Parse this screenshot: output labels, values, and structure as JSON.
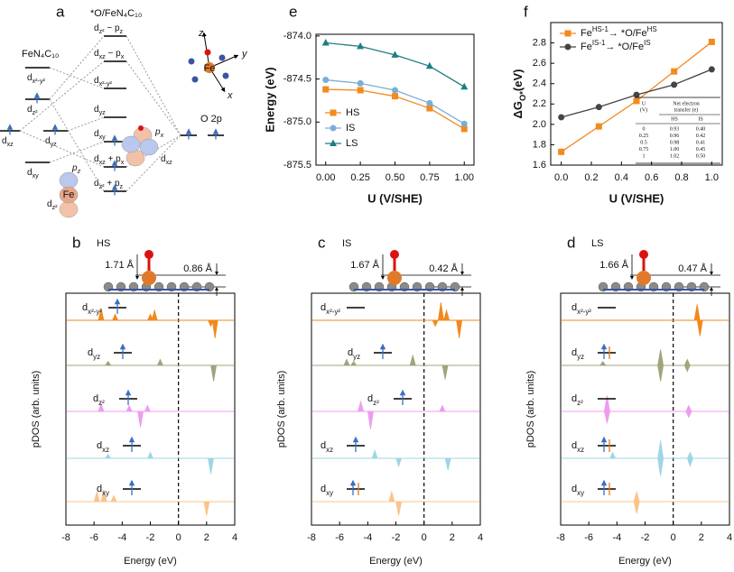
{
  "diagram": {
    "letter": "a",
    "title": "*O/FeN₄C₁₀",
    "left_title": "FeN₄C₁₀",
    "left_levels": [
      [
        "d",
        "x²-y²"
      ],
      [
        "d",
        "z²"
      ],
      [
        "d",
        "yz"
      ],
      [
        "d",
        "xz"
      ],
      [
        "d",
        "xy"
      ]
    ],
    "middle_levels": [
      [
        "d",
        "z²",
        " − p",
        "z"
      ],
      [
        "d",
        "xz",
        " − p",
        "x"
      ],
      [
        "d",
        "x²-y²"
      ],
      [
        "d",
        "yz"
      ],
      [
        "d",
        "xy"
      ],
      [
        "d",
        "xz",
        " + p",
        "x"
      ],
      [
        "d",
        "z²",
        " + p",
        "z"
      ]
    ],
    "o_label": "O 2p",
    "orbital_labels": [
      [
        "p",
        "x"
      ],
      [
        "d",
        "xz"
      ],
      [
        "p",
        "z"
      ],
      [
        "d",
        "z²"
      ]
    ],
    "fe_labels": [
      "Fe",
      "Fe"
    ],
    "axis_labels": [
      "z",
      "y",
      "x"
    ]
  },
  "chart_data": [
    {
      "type": "line",
      "letter": "e",
      "ylabel": "Energy (eV)",
      "xlabel": "U (V/SHE)",
      "x": [
        0,
        0.25,
        0.5,
        0.75,
        1
      ],
      "xlim": [
        -0.07,
        1.07
      ],
      "ylim": [
        -875.5,
        -873.98
      ],
      "xticks": [
        {
          "value": 0,
          "label": "0.00"
        },
        {
          "value": 0.25,
          "label": "0.25"
        },
        {
          "value": 0.5,
          "label": "0.50"
        },
        {
          "value": 0.75,
          "label": "0.75"
        },
        {
          "value": 1,
          "label": "1.00"
        }
      ],
      "yticks": [
        {
          "value": -875.5,
          "label": "-875.5"
        },
        {
          "value": -875,
          "label": "-875.0"
        },
        {
          "value": -874.5,
          "label": "-874.5"
        },
        {
          "value": -874,
          "label": "-874.0"
        }
      ],
      "legend": "lower left",
      "series": [
        {
          "name": "HS",
          "color": "#f28a1e",
          "marker": "square",
          "values": [
            -874.62,
            -874.63,
            -874.7,
            -874.84,
            -875.08
          ]
        },
        {
          "name": "IS",
          "color": "#7aaed6",
          "marker": "circle",
          "values": [
            -874.51,
            -874.55,
            -874.63,
            -874.78,
            -875.02
          ]
        },
        {
          "name": "LS",
          "color": "#1f7d82",
          "marker": "triangle",
          "values": [
            -874.08,
            -874.12,
            -874.22,
            -874.35,
            -874.59
          ]
        }
      ]
    },
    {
      "type": "line",
      "letter": "f",
      "ylabel": [
        "ΔG",
        "O*",
        "(eV)"
      ],
      "xlabel": "U (V/SHE)",
      "x": [
        0,
        0.25,
        0.5,
        0.75,
        1
      ],
      "xlim": [
        -0.07,
        1.07
      ],
      "ylim": [
        1.6,
        3.0
      ],
      "xticks": [
        {
          "value": 0,
          "label": "0.0"
        },
        0.2,
        0.4,
        0.6,
        0.8,
        {
          "value": 1,
          "label": "1.0"
        }
      ],
      "yticks": [
        1.6,
        1.8,
        {
          "value": 2,
          "label": "2.0"
        },
        2.2,
        2.4,
        2.6,
        2.8
      ],
      "legend": "upper left",
      "series": [
        {
          "name": [
            "Fe",
            "HS-1",
            "→  *O/Fe",
            "HS"
          ],
          "color": "#f28a1e",
          "marker": "square",
          "values": [
            1.73,
            1.98,
            2.23,
            2.52,
            2.81
          ]
        },
        {
          "name": [
            "Fe",
            "IS-1",
            "→  *O/Fe",
            "IS"
          ],
          "color": "#444444",
          "marker": "circle",
          "values": [
            2.07,
            2.17,
            2.29,
            2.39,
            2.54
          ]
        }
      ],
      "inset_table": {
        "headers": [
          "U",
          "Net electron",
          "(V)",
          "transfer (e)"
        ],
        "subheaders": [
          "HS",
          "IS"
        ],
        "rows": [
          [
            "0",
            "0.93",
            "0.40"
          ],
          [
            "0.25",
            "0.96",
            "0.42"
          ],
          [
            "0.5",
            "0.98",
            "0.41"
          ],
          [
            "0.75",
            "1.00",
            "0.45"
          ],
          [
            "1",
            "1.02",
            "0.50"
          ]
        ]
      }
    },
    {
      "type": "pdos",
      "letter": "b",
      "state": "HS",
      "bond": "1.71 Å",
      "height": "0.86 Å",
      "xlabel": "Energy (eV)",
      "ylabel": "pDOS (arb. units)",
      "xlim": [
        -8,
        4
      ],
      "xticks": [
        -8,
        -6,
        -4,
        -2,
        0,
        2,
        4
      ],
      "rows": [
        {
          "label": [
            "d",
            "x²-y²"
          ],
          "color": "#f08a1c",
          "peaks_x": [
            -5.5,
            -4.5,
            -2,
            -1.7,
            2.3,
            2.6
          ],
          "peaks_y": [
            0.6,
            0.3,
            0.3,
            0.5,
            -0.3,
            -0.9
          ]
        },
        {
          "label": [
            "d",
            "yz"
          ],
          "color": "#a3a37c",
          "peaks_x": [
            -5,
            -1.3,
            2.5
          ],
          "peaks_y": [
            0.2,
            0.3,
            -0.8
          ]
        },
        {
          "label": [
            "d",
            "z²"
          ],
          "color": "#ee9cee",
          "peaks_x": [
            -5.5,
            -3.5,
            -2.7,
            -2.2
          ],
          "peaks_y": [
            0.4,
            0.3,
            -0.8,
            0.3
          ]
        },
        {
          "label": [
            "d",
            "xz"
          ],
          "color": "#9fd6e6",
          "peaks_x": [
            -5,
            -2,
            2.3
          ],
          "peaks_y": [
            0.2,
            0.3,
            -0.8
          ]
        },
        {
          "label": [
            "d",
            "xy"
          ],
          "color": "#f9c48c",
          "peaks_x": [
            -5.8,
            -5.3,
            -4.6,
            2
          ],
          "peaks_y": [
            0.5,
            0.6,
            0.3,
            -0.7
          ]
        }
      ]
    },
    {
      "type": "pdos",
      "letter": "c",
      "state": "IS",
      "bond": "1.67 Å",
      "height": "0.42 Å",
      "xlabel": "Energy (eV)",
      "ylabel": "pDOS (arb. units)",
      "xlim": [
        -8,
        4
      ],
      "xticks": [
        -8,
        -6,
        -4,
        -2,
        0,
        2,
        4
      ],
      "rows": [
        {
          "label": [
            "d",
            "x²-y²"
          ],
          "color": "#f08a1c",
          "peaks_x": [
            0.8,
            1.2,
            1.6,
            2.5
          ],
          "peaks_y": [
            -0.3,
            0.9,
            0.5,
            -0.9
          ]
        },
        {
          "label": [
            "d",
            "yz"
          ],
          "color": "#a3a37c",
          "peaks_x": [
            -5.5,
            -5,
            -0.8,
            1.5
          ],
          "peaks_y": [
            0.3,
            0.2,
            0.5,
            -0.7
          ]
        },
        {
          "label": [
            "d",
            "z²"
          ],
          "color": "#ee9cee",
          "peaks_x": [
            -4.5,
            -3.8,
            1.3
          ],
          "peaks_y": [
            0.5,
            -0.9,
            0.3
          ]
        },
        {
          "label": [
            "d",
            "xz"
          ],
          "color": "#9fd6e6",
          "peaks_x": [
            -3.5,
            -1.8,
            1.7
          ],
          "peaks_y": [
            0.4,
            -0.4,
            -0.6
          ]
        },
        {
          "label": [
            "d",
            "xy"
          ],
          "color": "#f9c48c",
          "peaks_x": [
            -2.3,
            -1.8
          ],
          "peaks_y": [
            0.5,
            -0.7
          ]
        }
      ]
    },
    {
      "type": "pdos",
      "letter": "d",
      "state": "LS",
      "bond": "1.66 Å",
      "height": "0.47 Å",
      "xlabel": "Energy (eV)",
      "ylabel": "pDOS (arb. units)",
      "xlim": [
        -8,
        4
      ],
      "xticks": [
        -8,
        -6,
        -4,
        -2,
        0,
        2,
        4
      ],
      "rows": [
        {
          "label": [
            "d",
            "x²-y²"
          ],
          "color": "#f08a1c",
          "peaks_x": [
            1.7,
            1.9
          ],
          "peaks_y": [
            0.8,
            -0.8
          ]
        },
        {
          "label": [
            "d",
            "yz"
          ],
          "color": "#a3a37c",
          "peaks_x": [
            -5,
            -0.9,
            -0.9,
            1,
            1
          ],
          "peaks_y": [
            0.2,
            0.8,
            -0.8,
            0.3,
            -0.3
          ]
        },
        {
          "label": [
            "d",
            "z²"
          ],
          "color": "#ee9cee",
          "peaks_x": [
            -4.7,
            -4.7,
            1.1,
            1.1
          ],
          "peaks_y": [
            0.8,
            -0.6,
            0.3,
            -0.3
          ]
        },
        {
          "label": [
            "d",
            "xz"
          ],
          "color": "#9fd6e6",
          "peaks_x": [
            -4.3,
            -0.9,
            -0.9,
            1.2,
            1.2
          ],
          "peaks_y": [
            0.3,
            0.9,
            -0.9,
            0.3,
            -0.4
          ]
        },
        {
          "label": [
            "d",
            "xy"
          ],
          "color": "#f9c48c",
          "peaks_x": [
            -2.6,
            -2.6
          ],
          "peaks_y": [
            0.5,
            -0.6
          ]
        }
      ]
    }
  ]
}
